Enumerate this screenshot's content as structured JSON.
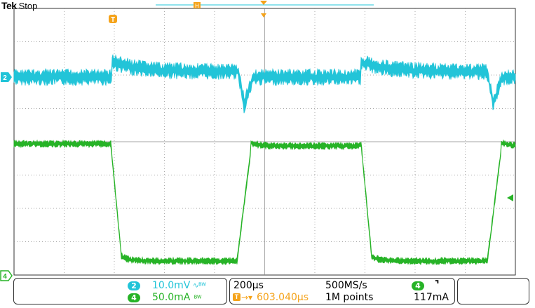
{
  "brand": {
    "name": "Tek",
    "state": "Stop"
  },
  "colors": {
    "ch2": "#22c4d8",
    "ch4": "#27b327",
    "trigger": "#f5a31a",
    "grid": "#444444"
  },
  "markers": {
    "trigger_top": "T",
    "ch2_ground": "2",
    "ch4_ground": "4",
    "horiz_pos": "H"
  },
  "readout": {
    "ch2": {
      "badge": "2",
      "scale": "10.0mV",
      "bw_icon": "bandwidth-limit-icon"
    },
    "ch4": {
      "badge": "4",
      "scale": "50.0mA",
      "bw_icon": "bandwidth-limit-icon"
    },
    "timebase": "200µs",
    "sample_rate": "500MS/s",
    "trigger_delay": "603.040µs",
    "record_length": "1M points",
    "trigger": {
      "source": "4",
      "slope": "falling-edge-icon",
      "level": "117mA"
    }
  }
}
